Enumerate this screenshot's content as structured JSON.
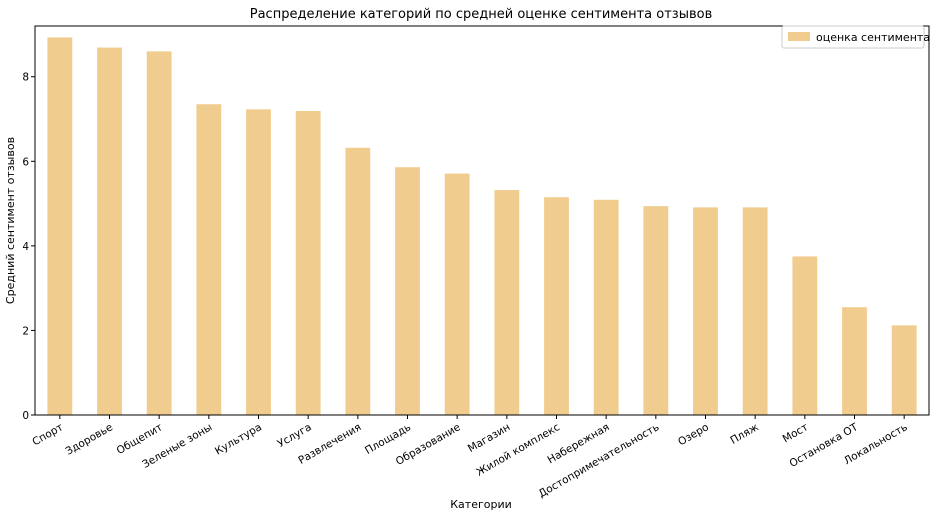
{
  "chart_data": {
    "type": "bar",
    "title": "Распределение категорий по средней оценке сентимента отзывов",
    "xlabel": "Категории",
    "ylabel": "Средний сентимент отзывов",
    "categories": [
      "Спорт",
      "Здоровье",
      "Общепит",
      "Зеленые зоны",
      "Культура",
      "Услуга",
      "Развлечения",
      "Площадь",
      "Образование",
      "Магазин",
      "Жилой комплекс",
      "Набережная",
      "Достопримечательность",
      "Озеро",
      "Пляж",
      "Мост",
      "Остановка ОТ",
      "Локальность"
    ],
    "series": [
      {
        "name": "оценка сентимента",
        "values": [
          8.93,
          8.69,
          8.6,
          7.35,
          7.23,
          7.19,
          6.32,
          5.86,
          5.71,
          5.32,
          5.15,
          5.09,
          4.94,
          4.91,
          4.91,
          3.75,
          2.55,
          2.12
        ],
        "color": "#f1cc8f"
      }
    ],
    "ylim": [
      0,
      9.2
    ],
    "yticks": [
      0,
      2,
      4,
      6,
      8
    ],
    "grid": false,
    "legend_position": "top-right"
  }
}
